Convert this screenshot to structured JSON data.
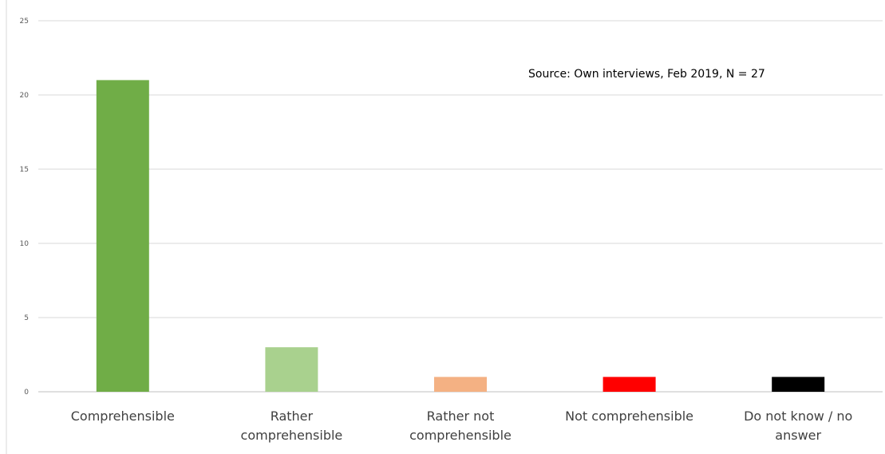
{
  "chart_data": {
    "type": "bar",
    "categories": [
      [
        "Comprehensible"
      ],
      [
        "Rather",
        "comprehensible"
      ],
      [
        "Rather not",
        "comprehensible"
      ],
      [
        "Not comprehensible"
      ],
      [
        "Do not know / no",
        "answer"
      ]
    ],
    "values": [
      21,
      3,
      1,
      1,
      1
    ],
    "colors": [
      "#70ad47",
      "#a9d18e",
      "#f4b183",
      "#ff0000",
      "#000000"
    ],
    "ylim": [
      0,
      25
    ],
    "yticks": [
      0,
      5,
      10,
      15,
      20,
      25
    ],
    "grid": true,
    "annotation": "Source: Own interviews, Feb 2019, N = 27",
    "title": "",
    "xlabel": "",
    "ylabel": ""
  }
}
